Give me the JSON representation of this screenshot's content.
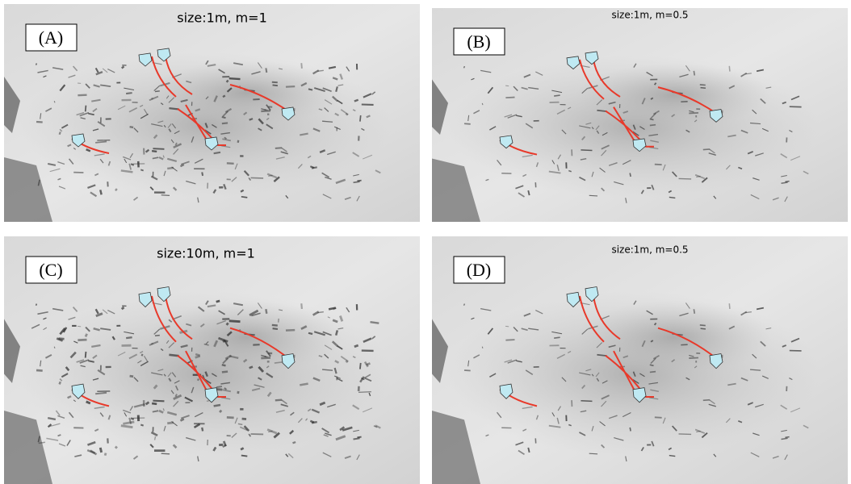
{
  "panels": [
    {
      "label": "(A)",
      "caption": "size:1m, m=1"
    },
    {
      "label": "(B)",
      "caption": "size:1m, m=0.5"
    },
    {
      "label": "(C)",
      "caption": "size:10m, m=1"
    },
    {
      "label": "(D)",
      "caption": "size:1m, m=0.5"
    }
  ]
}
